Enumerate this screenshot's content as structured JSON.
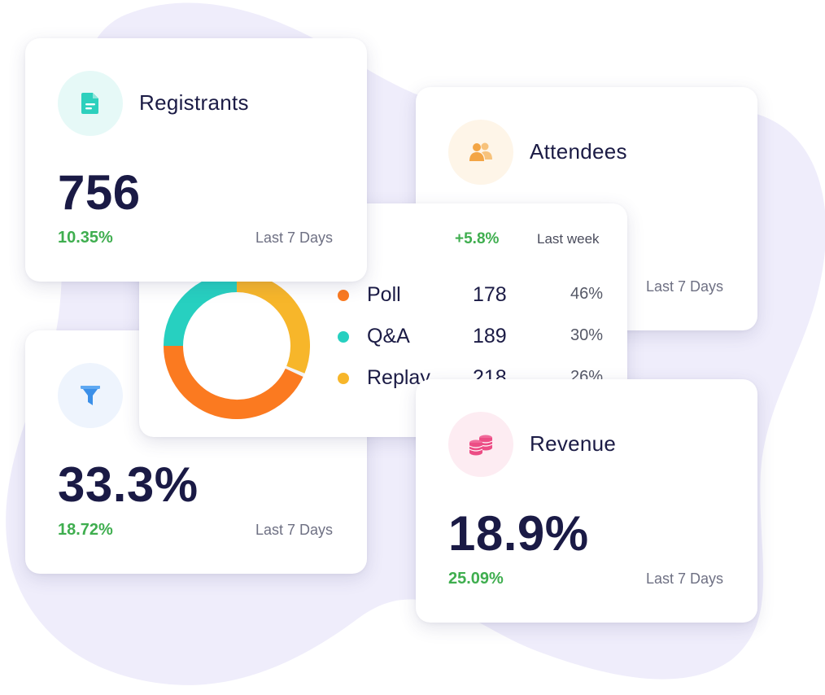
{
  "colors": {
    "green_change": "#3fae4f",
    "dark_text": "#1a1a45",
    "muted_text": "#6e7083",
    "blob": "#efedfb",
    "teal": "#27d0c0",
    "orange": "#fb7a20",
    "yellow": "#f7b62a"
  },
  "registrants": {
    "icon": "document-icon",
    "title": "Registrants",
    "value": "756",
    "change": "10.35%",
    "period": "Last 7 Days"
  },
  "attendees": {
    "icon": "users-icon",
    "title": "Attendees",
    "period": "Last 7 Days"
  },
  "engagement": {
    "change": "+5.8%",
    "period": "Last week",
    "items": [
      {
        "label": "Poll",
        "count": "178",
        "percent": "46%",
        "color": "#fb7a20"
      },
      {
        "label": "Q&A",
        "count": "189",
        "percent": "30%",
        "color": "#27d0c0"
      },
      {
        "label": "Replay",
        "count": "218",
        "percent": "26%",
        "color": "#f7b62a"
      }
    ]
  },
  "conversion": {
    "icon": "filter-icon",
    "value": "33.3%",
    "change": "18.72%",
    "period": "Last 7 Days"
  },
  "revenue": {
    "icon": "coins-icon",
    "title": "Revenue",
    "value": "18.9%",
    "change": "25.09%",
    "period": "Last 7 Days"
  }
}
